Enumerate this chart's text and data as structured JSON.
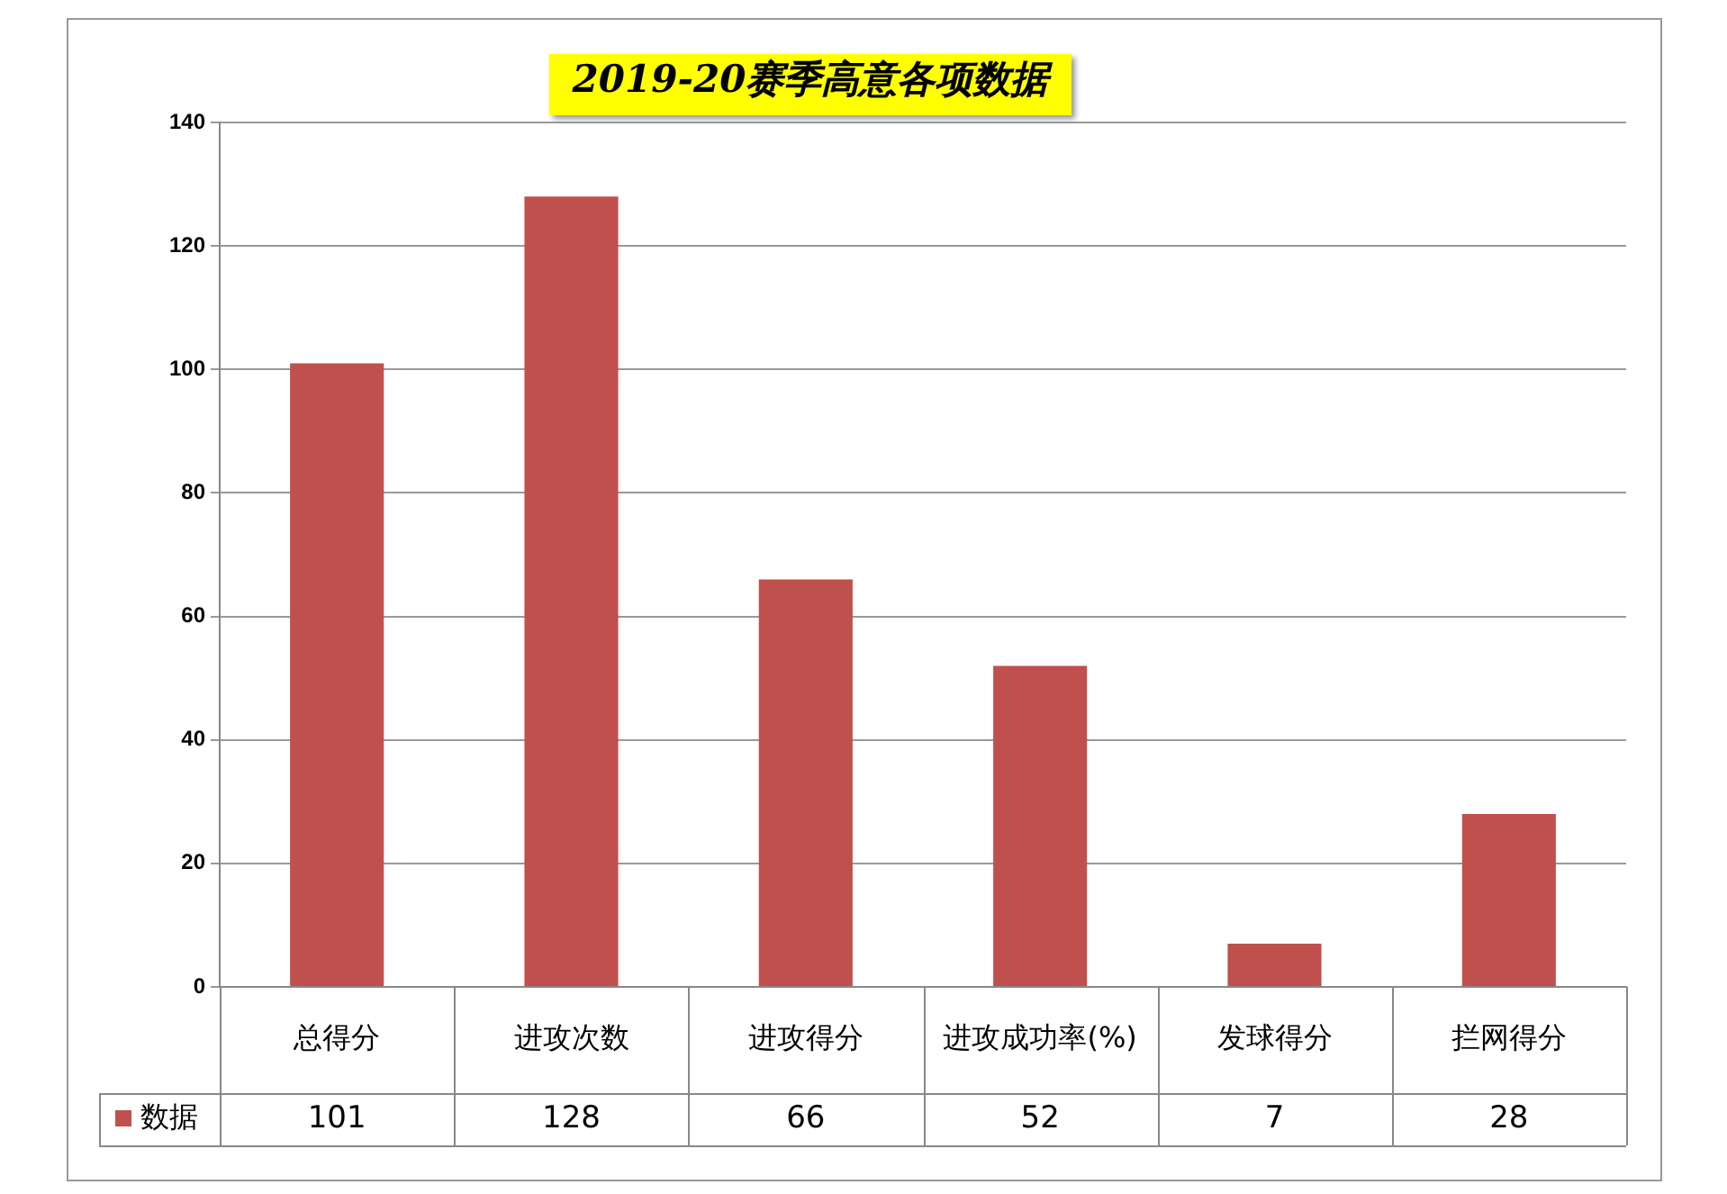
{
  "chart_data": {
    "type": "bar",
    "title": "2019-20赛季高意各项数据",
    "categories": [
      "总得分",
      "进攻次数",
      "进攻得分",
      "进攻成功率(%)",
      "发球得分",
      "拦网得分"
    ],
    "series": [
      {
        "name": "数据",
        "color": "#c0504d",
        "values": [
          101,
          128,
          66,
          52,
          7,
          28
        ]
      }
    ],
    "ylim": [
      0,
      140
    ],
    "yticks": [
      0,
      20,
      40,
      60,
      80,
      100,
      120,
      140
    ],
    "grid": "y",
    "legend": "bottom",
    "data_labels": true
  }
}
